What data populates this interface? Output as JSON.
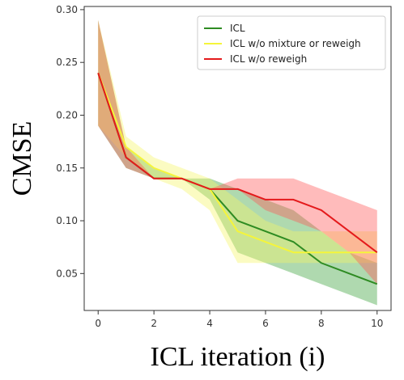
{
  "chart_data": {
    "type": "line",
    "xlabel": "ICL iteration (i)",
    "ylabel": "CMSE",
    "xlim": [
      -0.5,
      10.5
    ],
    "ylim": [
      0.015,
      0.303
    ],
    "xticks": [
      0,
      2,
      4,
      6,
      8,
      10
    ],
    "yticks": [
      0.05,
      0.1,
      0.15,
      0.2,
      0.25,
      0.3
    ],
    "grid": false,
    "legend_position": "top-right",
    "x": [
      0,
      1,
      2,
      3,
      4,
      5,
      6,
      7,
      8,
      9,
      10
    ],
    "series": [
      {
        "name": "ICL",
        "color": "#2e8b22",
        "band_color": "#2e9a2e",
        "values": [
          0.24,
          0.16,
          0.14,
          0.14,
          0.13,
          0.1,
          0.09,
          0.08,
          0.06,
          0.05,
          0.04
        ],
        "lower": [
          0.19,
          0.15,
          0.14,
          0.14,
          0.12,
          0.07,
          0.06,
          0.05,
          0.04,
          0.03,
          0.02
        ],
        "upper": [
          0.29,
          0.17,
          0.15,
          0.14,
          0.14,
          0.13,
          0.12,
          0.11,
          0.09,
          0.07,
          0.06
        ]
      },
      {
        "name": "ICL w/o mixture or reweigh",
        "color": "#f5f53a",
        "band_color": "#f5f566",
        "values": [
          0.24,
          0.17,
          0.15,
          0.14,
          0.13,
          0.09,
          0.08,
          0.07,
          0.07,
          0.07,
          0.07
        ],
        "lower": [
          0.19,
          0.16,
          0.14,
          0.13,
          0.11,
          0.06,
          0.06,
          0.06,
          0.06,
          0.06,
          0.06
        ],
        "upper": [
          0.29,
          0.18,
          0.16,
          0.15,
          0.14,
          0.12,
          0.1,
          0.09,
          0.09,
          0.09,
          0.09
        ]
      },
      {
        "name": "ICL w/o reweigh",
        "color": "#e41a1c",
        "band_color": "#ff5555",
        "values": [
          0.24,
          0.16,
          0.14,
          0.14,
          0.13,
          0.13,
          0.12,
          0.12,
          0.11,
          0.09,
          0.07
        ],
        "lower": [
          0.19,
          0.15,
          0.14,
          0.14,
          0.13,
          0.13,
          0.11,
          0.1,
          0.09,
          0.07,
          0.04
        ],
        "upper": [
          0.29,
          0.17,
          0.14,
          0.14,
          0.13,
          0.14,
          0.14,
          0.14,
          0.13,
          0.12,
          0.11
        ]
      }
    ]
  }
}
